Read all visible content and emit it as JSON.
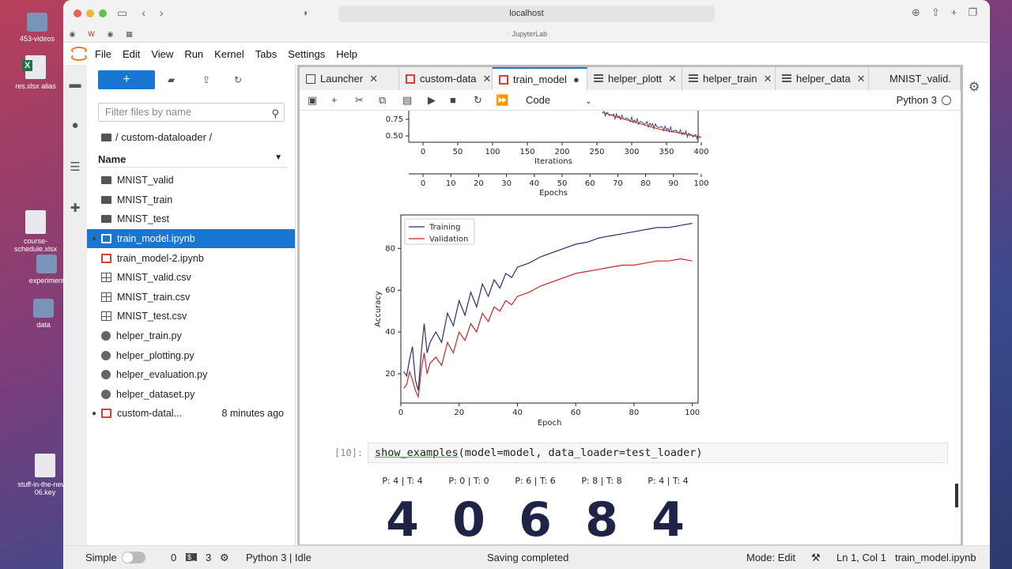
{
  "desktop": {
    "items": [
      {
        "label": "453-videos",
        "kind": "folder"
      },
      {
        "label": "res.xlsx alias",
        "kind": "xls"
      },
      {
        "label": "course-schedule.xlsx",
        "kind": "doc"
      },
      {
        "label": "experiment",
        "kind": "folder"
      },
      {
        "label": "data",
        "kind": "folder"
      },
      {
        "label": "stuff-in-the-news-06.key",
        "kind": "doc"
      }
    ]
  },
  "browser": {
    "url": "localhost",
    "page_title": "JupyterLab"
  },
  "menu": [
    "File",
    "Edit",
    "View",
    "Run",
    "Kernel",
    "Tabs",
    "Settings",
    "Help"
  ],
  "filebrowser": {
    "new_label": "+",
    "search_placeholder": "Filter files by name",
    "breadcrumb": "/ custom-dataloader /",
    "column_name": "Name",
    "files": [
      {
        "name": "MNIST_valid",
        "type": "folder",
        "modified": ""
      },
      {
        "name": "MNIST_train",
        "type": "folder",
        "modified": ""
      },
      {
        "name": "MNIST_test",
        "type": "folder",
        "modified": ""
      },
      {
        "name": "train_model.ipynb",
        "type": "nb",
        "modified": "",
        "selected": true,
        "running": true
      },
      {
        "name": "train_model-2.ipynb",
        "type": "nb",
        "modified": ""
      },
      {
        "name": "MNIST_valid.csv",
        "type": "csv",
        "modified": ""
      },
      {
        "name": "MNIST_train.csv",
        "type": "csv",
        "modified": ""
      },
      {
        "name": "MNIST_test.csv",
        "type": "csv",
        "modified": ""
      },
      {
        "name": "helper_train.py",
        "type": "py",
        "modified": ""
      },
      {
        "name": "helper_plotting.py",
        "type": "py",
        "modified": ""
      },
      {
        "name": "helper_evaluation.py",
        "type": "py",
        "modified": ""
      },
      {
        "name": "helper_dataset.py",
        "type": "py",
        "modified": ""
      },
      {
        "name": "custom-datal...",
        "type": "nb",
        "modified": "8 minutes ago",
        "running": true
      }
    ]
  },
  "tabs": [
    {
      "label": "Launcher",
      "icon": "launch",
      "close": "✕"
    },
    {
      "label": "custom-data",
      "icon": "nb",
      "close": "✕"
    },
    {
      "label": "train_model",
      "icon": "nb",
      "close": "●",
      "active": true
    },
    {
      "label": "helper_plott",
      "icon": "pyf",
      "close": "✕"
    },
    {
      "label": "helper_train",
      "icon": "pyf",
      "close": "✕"
    },
    {
      "label": "helper_data",
      "icon": "pyf",
      "close": "✕"
    },
    {
      "label": "MNIST_valid.",
      "icon": "csv",
      "close": ""
    }
  ],
  "notebook_toolbar": {
    "cell_type": "Code",
    "kernel": "Python 3"
  },
  "chart_data": [
    {
      "type": "line",
      "title": "",
      "xlabel": "Iterations",
      "ylabel": "",
      "xlim": [
        0,
        400
      ],
      "x_ticks": [
        0,
        50,
        100,
        150,
        200,
        250,
        300,
        350,
        400
      ],
      "y_ticks": [
        "0.75",
        "0.50"
      ],
      "secondary_xlabel": "Epochs",
      "secondary_x_ticks": [
        0,
        10,
        20,
        30,
        40,
        50,
        60,
        70,
        80,
        90,
        100
      ],
      "series": [
        {
          "name": "",
          "x": [
            260,
            280,
            300,
            320,
            340,
            360,
            380,
            400
          ],
          "y": [
            0.85,
            0.78,
            0.72,
            0.66,
            0.6,
            0.56,
            0.52,
            0.48
          ]
        }
      ]
    },
    {
      "type": "line",
      "title": "",
      "xlabel": "Epoch",
      "ylabel": "Accuracy",
      "xlim": [
        0,
        102
      ],
      "ylim": [
        6,
        96
      ],
      "x_ticks": [
        0,
        20,
        40,
        60,
        80,
        100
      ],
      "y_ticks": [
        20,
        40,
        60,
        80
      ],
      "legend": "top-left",
      "series": [
        {
          "name": "Training",
          "color": "#2b2f6b",
          "x": [
            1,
            2,
            3,
            4,
            5,
            6,
            7,
            8,
            9,
            10,
            12,
            14,
            16,
            18,
            20,
            22,
            24,
            26,
            28,
            30,
            32,
            34,
            36,
            38,
            40,
            44,
            48,
            52,
            56,
            60,
            64,
            68,
            72,
            76,
            80,
            84,
            88,
            92,
            96,
            100
          ],
          "y": [
            21,
            19,
            27,
            33,
            17,
            12,
            30,
            44,
            30,
            35,
            40,
            35,
            49,
            43,
            55,
            48,
            59,
            52,
            63,
            57,
            65,
            61,
            68,
            66,
            71,
            73,
            76,
            78,
            80,
            82,
            83,
            85,
            86,
            87,
            88,
            89,
            90,
            90,
            91,
            92
          ]
        },
        {
          "name": "Validation",
          "color": "#c62828",
          "x": [
            1,
            2,
            3,
            4,
            5,
            6,
            7,
            8,
            9,
            10,
            12,
            14,
            16,
            18,
            20,
            22,
            24,
            26,
            28,
            30,
            32,
            34,
            36,
            38,
            40,
            44,
            48,
            52,
            56,
            60,
            64,
            68,
            72,
            76,
            80,
            84,
            88,
            92,
            96,
            100
          ],
          "y": [
            13,
            15,
            21,
            17,
            12,
            9,
            22,
            30,
            20,
            25,
            28,
            24,
            35,
            30,
            40,
            36,
            44,
            40,
            49,
            45,
            52,
            50,
            55,
            53,
            57,
            59,
            62,
            64,
            66,
            68,
            69,
            70,
            71,
            72,
            72,
            73,
            74,
            74,
            75,
            74
          ]
        }
      ]
    }
  ],
  "cell": {
    "prompt": "[10]:",
    "code_fn": "show_examples",
    "code_rest": "(model=model, data_loader=test_loader)"
  },
  "examples": [
    {
      "label": "P: 4 | T: 4",
      "digit": "4"
    },
    {
      "label": "P: 0 | T: 0",
      "digit": "0"
    },
    {
      "label": "P: 6 | T: 6",
      "digit": "6"
    },
    {
      "label": "P: 8 | T: 8",
      "digit": "8"
    },
    {
      "label": "P: 4 | T: 4",
      "digit": "4"
    }
  ],
  "status": {
    "simple": "Simple",
    "count_a": "0",
    "count_b": "3",
    "kernel": "Python 3 | Idle",
    "message": "Saving completed",
    "mode": "Mode: Edit",
    "position": "Ln 1, Col 1",
    "file": "train_model.ipynb"
  }
}
